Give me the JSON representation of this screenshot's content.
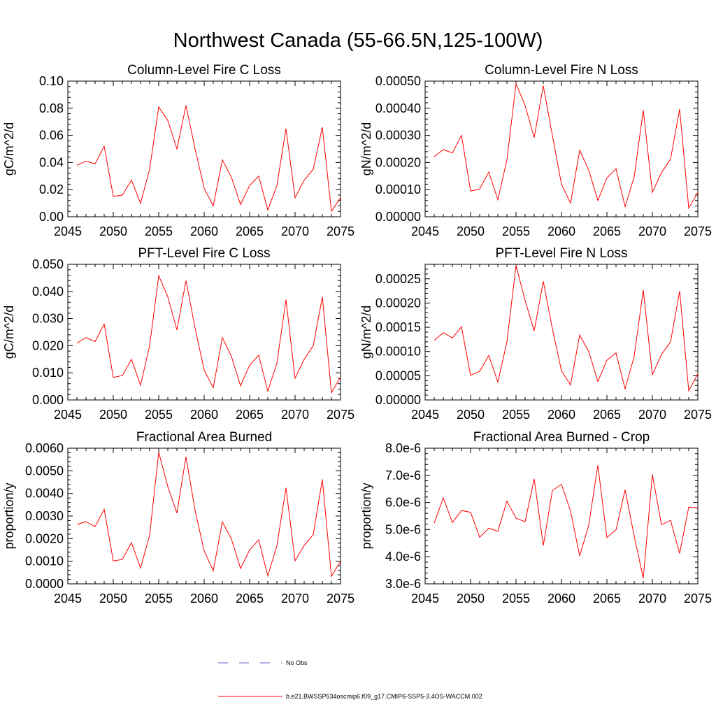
{
  "figure": {
    "title": "Northwest Canada (55-66.5N,125-100W)"
  },
  "colors": {
    "series": "#ff0000",
    "obs": "#6666cc",
    "axis": "#000000"
  },
  "legend": {
    "entries": [
      {
        "label": "No Obs",
        "style": "dashed",
        "color": "#6666cc"
      },
      {
        "label": "b.e21.BWSSP534oscmip6.f09_g17.CMIP6-SSP5-3.4OS-WACCM.002",
        "style": "solid",
        "color": "#ff0000"
      }
    ]
  },
  "chart_data": [
    {
      "type": "line",
      "title": "Column-Level Fire C Loss",
      "ylabel": "gC/m^2/d",
      "xlim": [
        2045,
        2075
      ],
      "ylim": [
        0,
        0.1
      ],
      "xticks": [
        2045,
        2050,
        2055,
        2060,
        2065,
        2070,
        2075
      ],
      "yticks": [
        0,
        0.02,
        0.04,
        0.06,
        0.08,
        0.1
      ],
      "ytick_labels": [
        "0.00",
        "0.02",
        "0.04",
        "0.06",
        "0.08",
        "0.10"
      ],
      "x": [
        2046,
        2047,
        2048,
        2049,
        2050,
        2051,
        2052,
        2053,
        2054,
        2055,
        2056,
        2057,
        2058,
        2059,
        2060,
        2061,
        2062,
        2063,
        2064,
        2065,
        2066,
        2067,
        2068,
        2069,
        2070,
        2071,
        2072,
        2073,
        2074,
        2075
      ],
      "values": [
        0.038,
        0.041,
        0.039,
        0.052,
        0.015,
        0.016,
        0.027,
        0.01,
        0.035,
        0.081,
        0.071,
        0.05,
        0.082,
        0.05,
        0.021,
        0.008,
        0.042,
        0.029,
        0.009,
        0.023,
        0.03,
        0.005,
        0.023,
        0.065,
        0.014,
        0.027,
        0.035,
        0.066,
        0.004,
        0.014
      ]
    },
    {
      "type": "line",
      "title": "Column-Level Fire N Loss",
      "ylabel": "gN/m^2/d",
      "xlim": [
        2045,
        2075
      ],
      "ylim": [
        0,
        0.0005
      ],
      "xticks": [
        2045,
        2050,
        2055,
        2060,
        2065,
        2070,
        2075
      ],
      "yticks": [
        0,
        0.0001,
        0.0002,
        0.0003,
        0.0004,
        0.0005
      ],
      "ytick_labels": [
        "0.00000",
        "0.00010",
        "0.00020",
        "0.00030",
        "0.00040",
        "0.00050"
      ],
      "x": [
        2046,
        2047,
        2048,
        2049,
        2050,
        2051,
        2052,
        2053,
        2054,
        2055,
        2056,
        2057,
        2058,
        2059,
        2060,
        2061,
        2062,
        2063,
        2064,
        2065,
        2066,
        2067,
        2068,
        2069,
        2070,
        2071,
        2072,
        2073,
        2074,
        2075
      ],
      "values": [
        0.000222,
        0.000248,
        0.000235,
        0.0003,
        9.5e-05,
        0.000102,
        0.000165,
        6.3e-05,
        0.00021,
        0.00049,
        0.00041,
        0.000292,
        0.000483,
        0.0003,
        0.00012,
        5e-05,
        0.000245,
        0.000172,
        6e-05,
        0.000143,
        0.000177,
        3.7e-05,
        0.000148,
        0.000393,
        9e-05,
        0.000163,
        0.000212,
        0.000397,
        3.2e-05,
        9e-05
      ]
    },
    {
      "type": "line",
      "title": "PFT-Level Fire C Loss",
      "ylabel": "gC/m^2/d",
      "xlim": [
        2045,
        2075
      ],
      "ylim": [
        0,
        0.05
      ],
      "xticks": [
        2045,
        2050,
        2055,
        2060,
        2065,
        2070,
        2075
      ],
      "yticks": [
        0,
        0.01,
        0.02,
        0.03,
        0.04,
        0.05
      ],
      "ytick_labels": [
        "0.000",
        "0.010",
        "0.020",
        "0.030",
        "0.040",
        "0.050"
      ],
      "x": [
        2046,
        2047,
        2048,
        2049,
        2050,
        2051,
        2052,
        2053,
        2054,
        2055,
        2056,
        2057,
        2058,
        2059,
        2060,
        2061,
        2062,
        2063,
        2064,
        2065,
        2066,
        2067,
        2068,
        2069,
        2070,
        2071,
        2072,
        2073,
        2074,
        2075
      ],
      "values": [
        0.021,
        0.023,
        0.0215,
        0.028,
        0.0083,
        0.009,
        0.015,
        0.0054,
        0.02,
        0.0458,
        0.038,
        0.0258,
        0.044,
        0.0265,
        0.011,
        0.0045,
        0.023,
        0.016,
        0.0052,
        0.0128,
        0.0165,
        0.0032,
        0.0135,
        0.037,
        0.008,
        0.015,
        0.02,
        0.038,
        0.0027,
        0.0084
      ]
    },
    {
      "type": "line",
      "title": "PFT-Level Fire N Loss",
      "ylabel": "gN/m^2/d",
      "xlim": [
        2045,
        2075
      ],
      "ylim": [
        0,
        0.00028
      ],
      "xticks": [
        2045,
        2050,
        2055,
        2060,
        2065,
        2070,
        2075
      ],
      "yticks": [
        0,
        5e-05,
        0.0001,
        0.00015,
        0.0002,
        0.00025
      ],
      "ytick_labels": [
        "0.00000",
        "0.00005",
        "0.00010",
        "0.00015",
        "0.00020",
        "0.00025"
      ],
      "x": [
        2046,
        2047,
        2048,
        2049,
        2050,
        2051,
        2052,
        2053,
        2054,
        2055,
        2056,
        2057,
        2058,
        2059,
        2060,
        2061,
        2062,
        2063,
        2064,
        2065,
        2066,
        2067,
        2068,
        2069,
        2070,
        2071,
        2072,
        2073,
        2074,
        2075
      ],
      "values": [
        0.000123,
        0.000139,
        0.000128,
        0.000151,
        5.1e-05,
        5.9e-05,
        9.2e-05,
        3.7e-05,
        0.00012,
        0.000278,
        0.000205,
        0.000143,
        0.000245,
        0.000147,
        6e-05,
        3.1e-05,
        0.000134,
        0.0001,
        3.8e-05,
        8.2e-05,
        9.7e-05,
        2.3e-05,
        9e-05,
        0.000227,
        5.2e-05,
        9.4e-05,
        0.00012,
        0.000225,
        1.9e-05,
        5.4e-05
      ]
    },
    {
      "type": "line",
      "title": "Fractional Area Burned",
      "ylabel": "proportion/y",
      "xlim": [
        2045,
        2075
      ],
      "ylim": [
        0,
        0.006
      ],
      "xticks": [
        2045,
        2050,
        2055,
        2060,
        2065,
        2070,
        2075
      ],
      "yticks": [
        0,
        0.001,
        0.002,
        0.003,
        0.004,
        0.005,
        0.006
      ],
      "ytick_labels": [
        "0.0000",
        "0.0010",
        "0.0020",
        "0.0030",
        "0.0040",
        "0.0050",
        "0.0060"
      ],
      "x": [
        2046,
        2047,
        2048,
        2049,
        2050,
        2051,
        2052,
        2053,
        2054,
        2055,
        2056,
        2057,
        2058,
        2059,
        2060,
        2061,
        2062,
        2063,
        2064,
        2065,
        2066,
        2067,
        2068,
        2069,
        2070,
        2071,
        2072,
        2073,
        2074,
        2075
      ],
      "values": [
        0.00263,
        0.00275,
        0.00253,
        0.0033,
        0.00101,
        0.00108,
        0.00182,
        0.0007,
        0.00215,
        0.00582,
        0.0043,
        0.00313,
        0.00562,
        0.00325,
        0.00145,
        0.00058,
        0.00274,
        0.00198,
        0.00068,
        0.0015,
        0.00195,
        0.00036,
        0.00168,
        0.00425,
        0.00102,
        0.0017,
        0.00218,
        0.00462,
        0.00033,
        0.001
      ]
    },
    {
      "type": "line",
      "title": "Fractional Area Burned - Crop",
      "ylabel": "proportion/y",
      "xlim": [
        2045,
        2075
      ],
      "ylim": [
        3e-06,
        8e-06
      ],
      "xticks": [
        2045,
        2050,
        2055,
        2060,
        2065,
        2070,
        2075
      ],
      "yticks": [
        3e-06,
        4e-06,
        5e-06,
        6e-06,
        7e-06,
        8e-06
      ],
      "ytick_labels": [
        "3.0e-6",
        "4.0e-6",
        "5.0e-6",
        "6.0e-6",
        "7.0e-6",
        "8.0e-6"
      ],
      "x": [
        2046,
        2047,
        2048,
        2049,
        2050,
        2051,
        2052,
        2053,
        2054,
        2055,
        2056,
        2057,
        2058,
        2059,
        2060,
        2061,
        2062,
        2063,
        2064,
        2065,
        2066,
        2067,
        2068,
        2069,
        2070,
        2071,
        2072,
        2073,
        2074,
        2075
      ],
      "values": [
        5.24e-06,
        6.17e-06,
        5.26e-06,
        5.7e-06,
        5.64e-06,
        4.72e-06,
        5.05e-06,
        4.94e-06,
        6.05e-06,
        5.42e-06,
        5.29e-06,
        6.87e-06,
        4.41e-06,
        6.44e-06,
        6.67e-06,
        5.68e-06,
        4.03e-06,
        5.16e-06,
        7.37e-06,
        4.71e-06,
        4.99e-06,
        6.47e-06,
        4.76e-06,
        3.21e-06,
        7.03e-06,
        5.18e-06,
        5.34e-06,
        4.12e-06,
        5.83e-06,
        5.8e-06
      ]
    }
  ]
}
